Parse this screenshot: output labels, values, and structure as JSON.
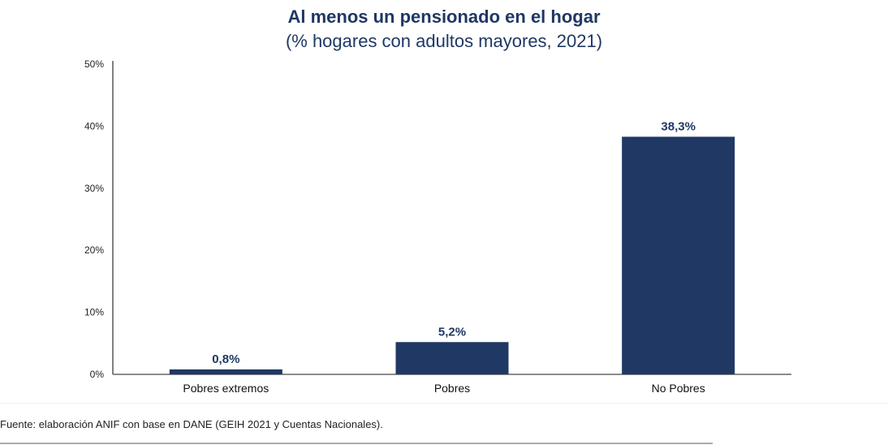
{
  "chart_data": {
    "type": "bar",
    "title": "Al menos un pensionado en el hogar",
    "subtitle": "(% hogares con adultos mayores, 2021)",
    "categories": [
      "Pobres extremos",
      "Pobres",
      "No Pobres"
    ],
    "values": [
      0.8,
      5.2,
      38.3
    ],
    "data_labels": [
      "0,8%",
      "5,2%",
      "38,3%"
    ],
    "yticks": [
      "0%",
      "10%",
      "20%",
      "30%",
      "40%",
      "50%"
    ],
    "ylim": [
      0,
      50
    ],
    "grid": false,
    "bar_color": "#203864",
    "xlabel": "",
    "ylabel": ""
  },
  "source": "Fuente: elaboración ANIF con base en DANE (GEIH 2021 y Cuentas Nacionales)."
}
